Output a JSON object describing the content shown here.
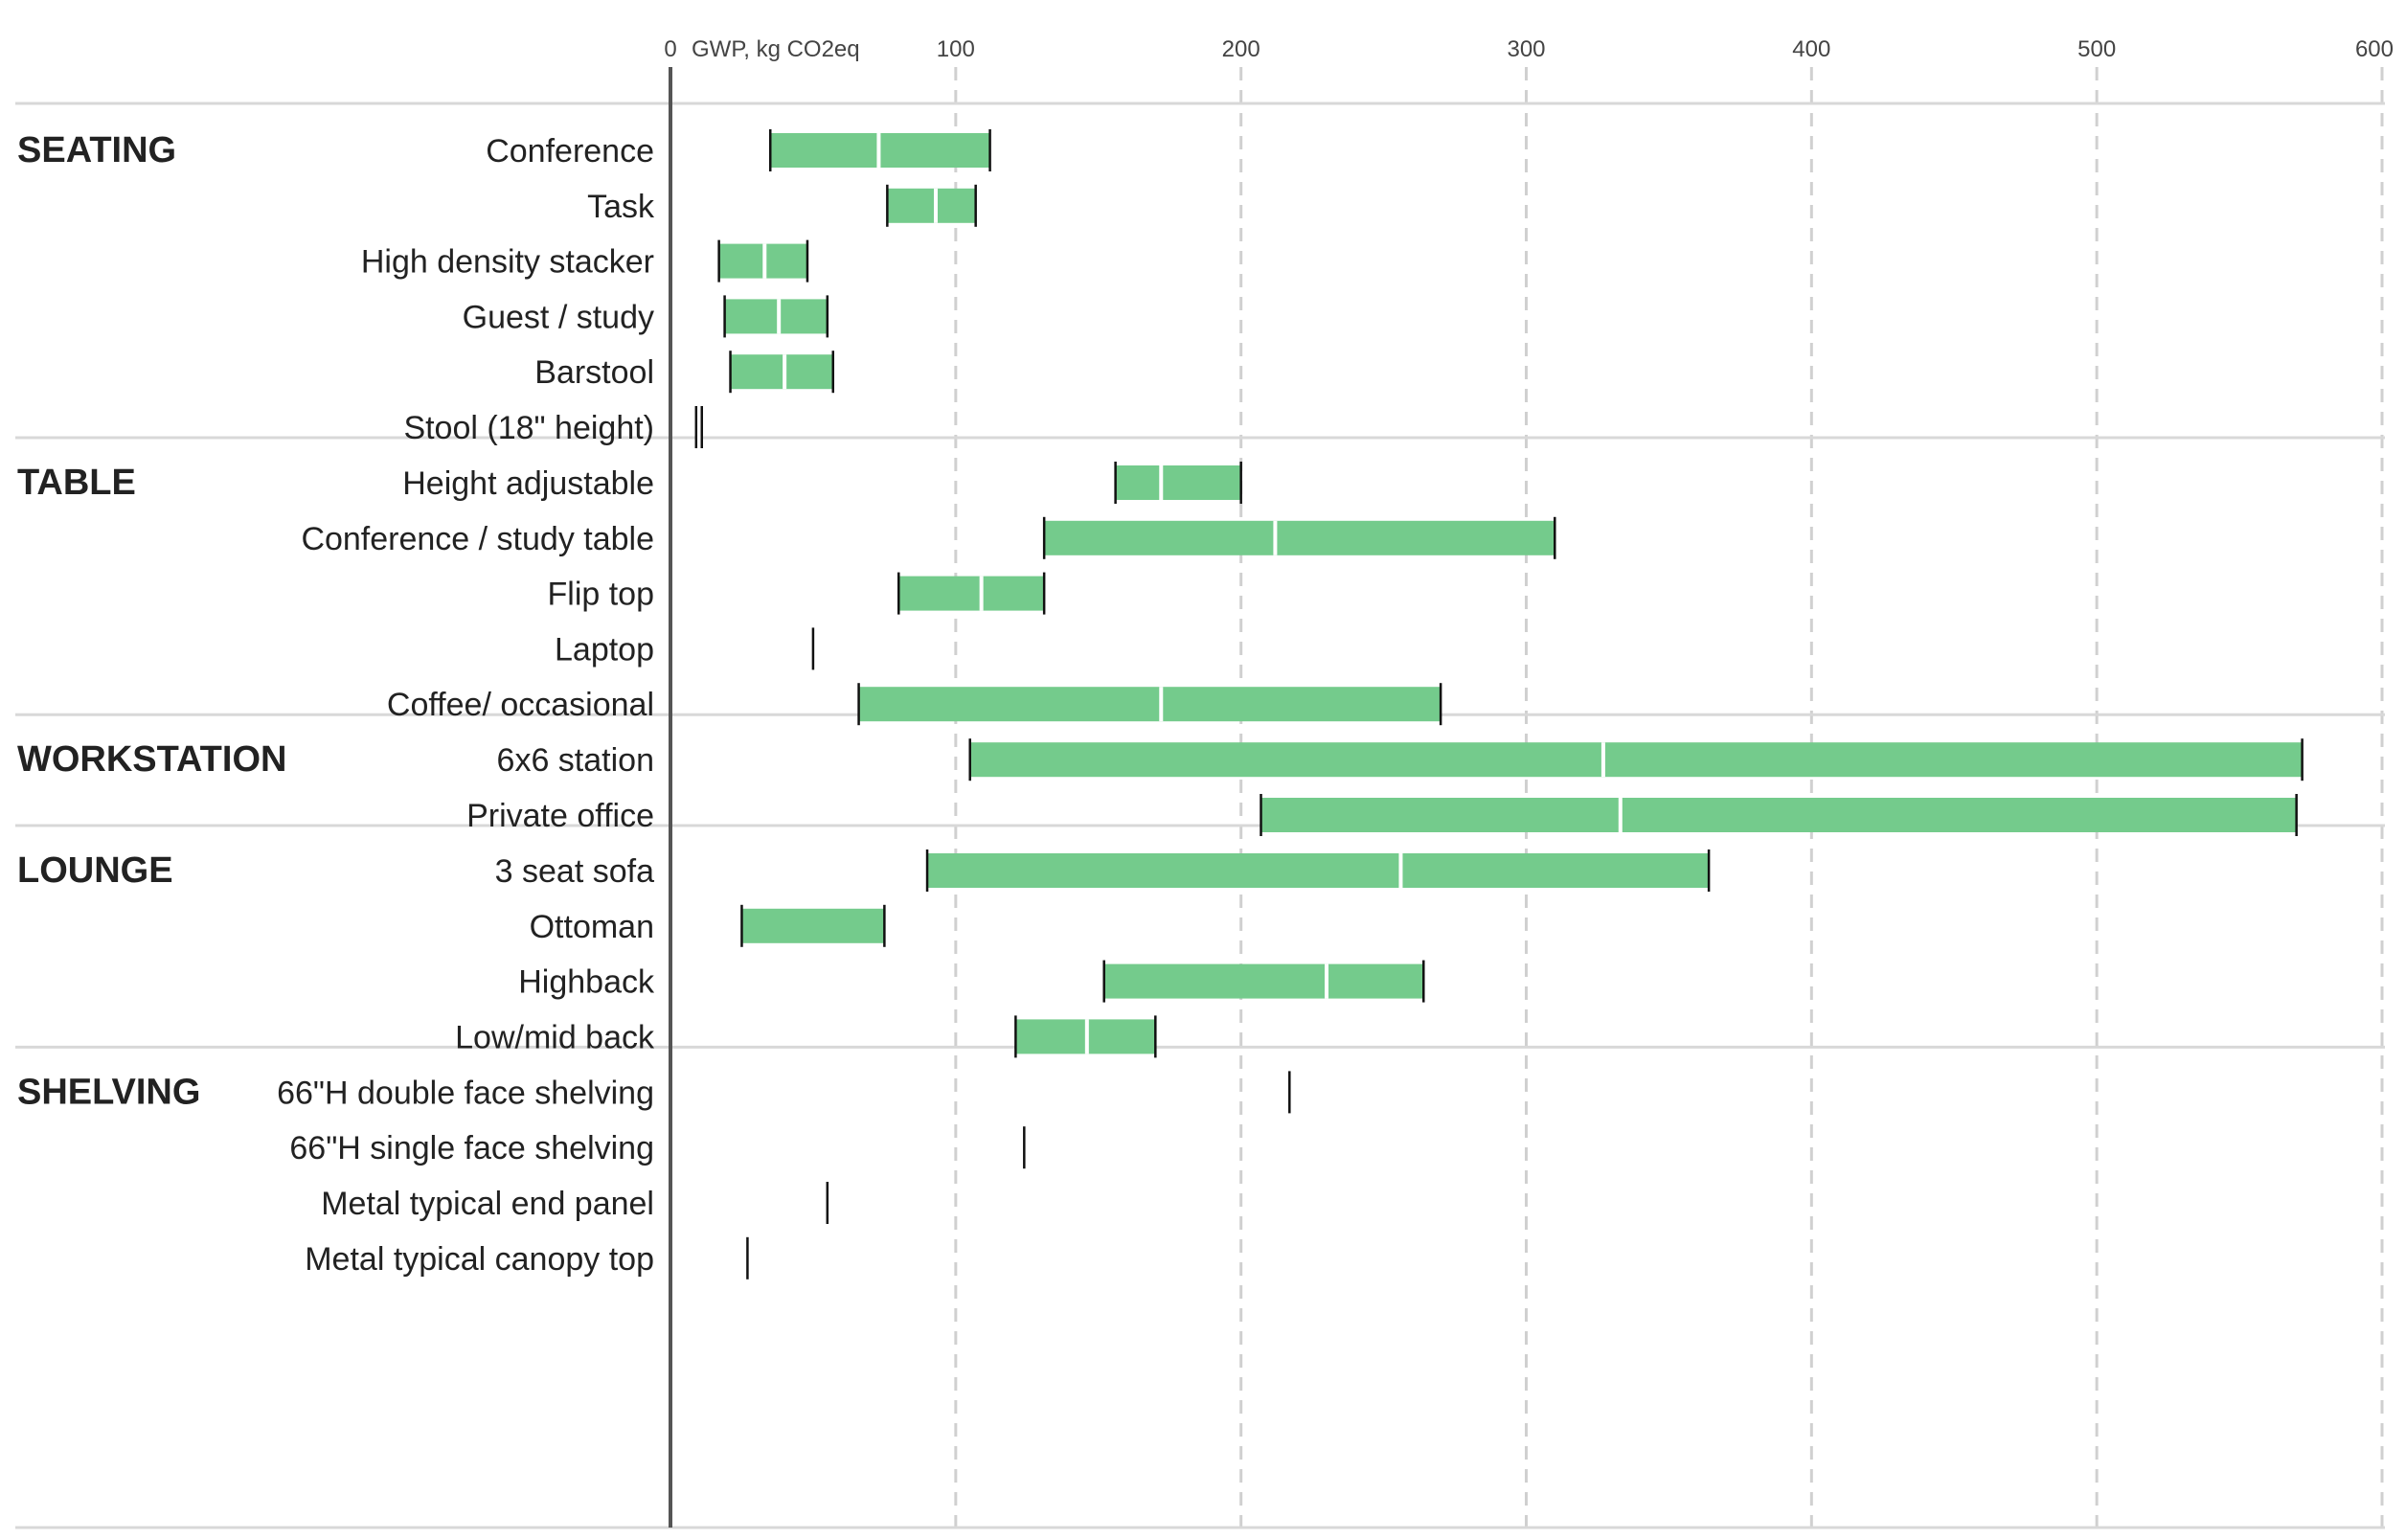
{
  "chart_data": {
    "type": "bar",
    "subtype": "range",
    "title": "",
    "xlabel": "GWP, kg CO2eq",
    "xlim": [
      0,
      600
    ],
    "x_ticks": [
      0,
      100,
      200,
      300,
      400,
      500,
      600
    ],
    "grid": true,
    "colors": {
      "bar": "#74CB8C",
      "marker": "#111111",
      "median": "#ffffff",
      "grid": "#d0d0d0",
      "axis": "#555555",
      "separator": "#d8d8d8"
    },
    "groups": [
      {
        "name": "SEATING",
        "items": [
          {
            "label": "Conference",
            "min": 35,
            "mid": 73,
            "max": 112
          },
          {
            "label": "Task",
            "min": 76,
            "mid": 93,
            "max": 107
          },
          {
            "label": "High density stacker",
            "min": 17,
            "mid": 33,
            "max": 48
          },
          {
            "label": "Guest / study",
            "min": 19,
            "mid": 38,
            "max": 55
          },
          {
            "label": "Barstool",
            "min": 21,
            "mid": 40,
            "max": 57
          },
          {
            "label": "Stool (18\" height)",
            "min": 9,
            "mid": 10,
            "max": 11
          }
        ]
      },
      {
        "name": "TABLE",
        "items": [
          {
            "label": "Height adjustable",
            "min": 156,
            "mid": 172,
            "max": 200
          },
          {
            "label": "Conference / study table",
            "min": 131,
            "mid": 212,
            "max": 310
          },
          {
            "label": "Flip top",
            "min": 80,
            "mid": 109,
            "max": 131
          },
          {
            "label": "Laptop",
            "min": 50,
            "mid": null,
            "max": 50
          },
          {
            "label": "Coffee/ occasional",
            "min": 66,
            "mid": 172,
            "max": 270
          }
        ]
      },
      {
        "name": "WORKSTATION",
        "items": [
          {
            "label": "6x6 station",
            "min": 105,
            "mid": 327,
            "max": 572
          },
          {
            "label": "Private office",
            "min": 207,
            "mid": 333,
            "max": 570
          }
        ]
      },
      {
        "name": "LOUNGE",
        "items": [
          {
            "label": "3 seat sofa",
            "min": 90,
            "mid": 256,
            "max": 364
          },
          {
            "label": "Ottoman",
            "min": 25,
            "mid": null,
            "max": 75
          },
          {
            "label": "Highback",
            "min": 152,
            "mid": 230,
            "max": 264
          },
          {
            "label": "Low/mid back",
            "min": 121,
            "mid": 146,
            "max": 170
          }
        ]
      },
      {
        "name": "SHELVING",
        "items": [
          {
            "label": "66\"H double face shelving",
            "min": 217,
            "mid": null,
            "max": 217
          },
          {
            "label": "66\"H single face shelving",
            "min": 124,
            "mid": null,
            "max": 124
          },
          {
            "label": "Metal typical end panel",
            "min": 55,
            "mid": null,
            "max": 55
          },
          {
            "label": "Metal typical canopy top",
            "min": 27,
            "mid": null,
            "max": 27
          }
        ]
      }
    ]
  }
}
